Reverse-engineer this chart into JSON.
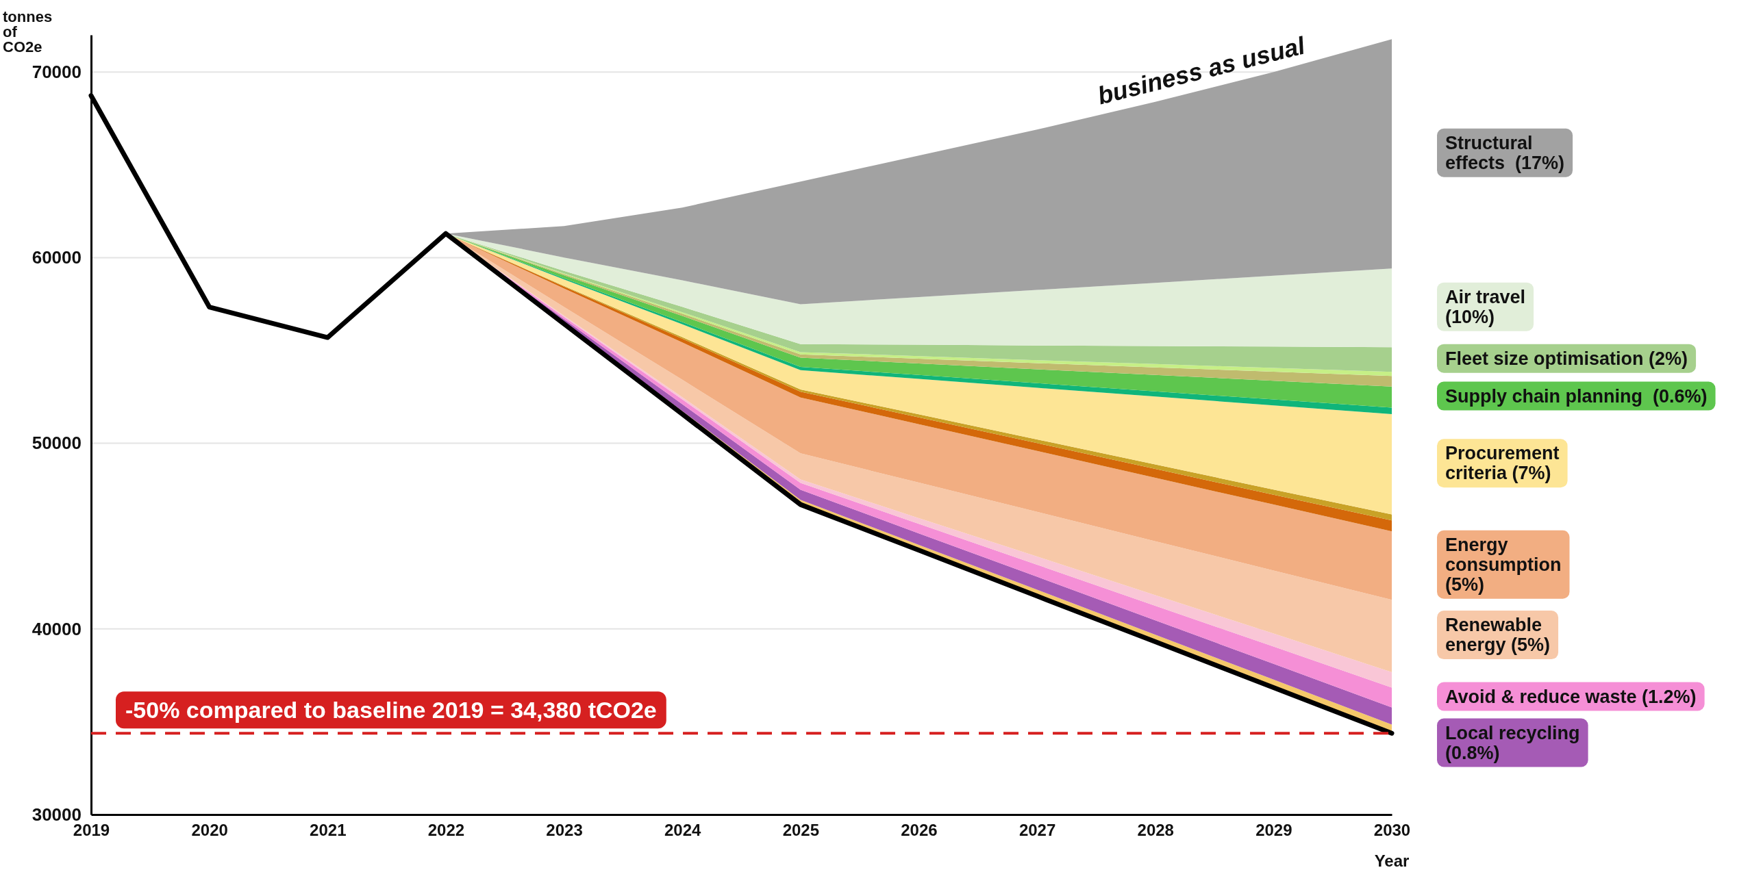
{
  "chart_data": {
    "type": "area",
    "xlabel": "Year",
    "ylabel": "tonnes of CO2e",
    "x": [
      2022,
      2023,
      2024,
      2025,
      2026,
      2027,
      2028,
      2029,
      2030
    ],
    "xlim": [
      2019,
      2030
    ],
    "xticks": [
      2019,
      2020,
      2021,
      2022,
      2023,
      2024,
      2025,
      2026,
      2027,
      2028,
      2029,
      2030
    ],
    "ylim": [
      30000,
      72000
    ],
    "yticks": [
      30000,
      40000,
      50000,
      60000,
      70000
    ],
    "grid": "y",
    "legend": false,
    "series": [
      {
        "type": "line",
        "color": "#000000",
        "x": [
          2019,
          2020,
          2021,
          2022,
          2023,
          2024,
          2025,
          2026,
          2027,
          2028,
          2029,
          2030
        ],
        "values": [
          68730,
          57340,
          55700,
          61300,
          56430,
          51570,
          46700,
          44240,
          41770,
          39310,
          36840,
          34380
        ]
      },
      {
        "color": "#f5c86a",
        "values": [
          61300,
          56510,
          51740,
          46950,
          44530,
          42110,
          39690,
          37270,
          34850
        ]
      },
      {
        "name": "Local recycling (0.8%)",
        "color": "#a55bb5",
        "values": [
          61300,
          56690,
          52110,
          47500,
          45150,
          42810,
          40460,
          38120,
          35770
        ]
      },
      {
        "name": "Avoid & reduce waste (1.2%)",
        "color": "#f58fd6",
        "values": [
          61300,
          56810,
          52360,
          47870,
          45660,
          43460,
          41250,
          39050,
          36840
        ]
      },
      {
        "color": "#f9c6d6",
        "values": [
          61300,
          56870,
          52480,
          48050,
          45970,
          43900,
          41820,
          39750,
          37670
        ]
      },
      {
        "name": "Renewable energy (5%)",
        "color": "#f7c8a8",
        "values": [
          61300,
          57340,
          53420,
          49460,
          47880,
          46310,
          44720,
          43150,
          41570
        ]
      },
      {
        "name": "Energy consumption (5%)",
        "color": "#f2ae82",
        "values": [
          61300,
          58340,
          55430,
          52470,
          51030,
          49590,
          48140,
          46700,
          45260
        ]
      },
      {
        "color": "#d4680a",
        "values": [
          61300,
          58440,
          55640,
          52780,
          51400,
          50010,
          48620,
          47230,
          45850
        ]
      },
      {
        "color": "#c9a227",
        "values": [
          61300,
          58480,
          55720,
          52900,
          51560,
          50210,
          48860,
          47510,
          46170
        ]
      },
      {
        "name": "Procurement criteria (7%)",
        "color": "#fde595",
        "values": [
          61300,
          58830,
          56410,
          53940,
          53470,
          52990,
          52520,
          52040,
          51570
        ]
      },
      {
        "color": "#10b57a",
        "values": [
          61300,
          58890,
          56530,
          54120,
          53680,
          53240,
          52800,
          52360,
          51920
        ]
      },
      {
        "name": "Supply chain planning  (0.6%)",
        "color": "#5ec64e",
        "values": [
          61300,
          59050,
          56860,
          54610,
          54300,
          53990,
          53680,
          53370,
          53060
        ]
      },
      {
        "color": "#c0bb6e",
        "values": [
          61300,
          59110,
          56980,
          54790,
          54560,
          54320,
          54090,
          53860,
          53630
        ]
      },
      {
        "color": "#c6ef86",
        "values": [
          61300,
          59150,
          57060,
          54910,
          54700,
          54480,
          54270,
          54060,
          53850
        ]
      },
      {
        "name": "Fleet size optimisation (2%)",
        "color": "#a6d08d",
        "values": [
          61300,
          59290,
          57350,
          55340,
          55310,
          55270,
          55240,
          55210,
          55180
        ]
      },
      {
        "name": "Air travel  (10%)",
        "color": "#e1eed9",
        "values": [
          61300,
          60010,
          58780,
          57490,
          57880,
          58260,
          58640,
          59030,
          59420
        ]
      },
      {
        "name": "Structural effects  (17%)",
        "color": "#a2a2a2",
        "values": [
          61300,
          61700,
          62700,
          64100,
          65500,
          66900,
          68400,
          70000,
          71770
        ]
      }
    ],
    "ref_lines": [
      {
        "axis": "y",
        "value": 34380,
        "label": "-50% compared to baseline 2019 = 34,380 tCO2e",
        "color": "#d62020",
        "line_style": "dashed"
      }
    ],
    "annotations": [
      "business as usual"
    ]
  }
}
